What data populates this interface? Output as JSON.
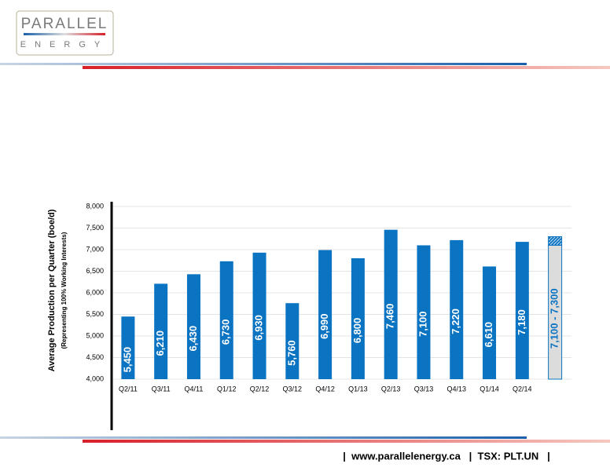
{
  "logo": {
    "name": "PARALLEL",
    "sub": "ENERGY"
  },
  "chart_data": {
    "type": "bar",
    "y_label": "Average Production per Quarter (boe/d)",
    "y_sublabel": "(Representing 100% Working Interests)",
    "categories": [
      "Q2/11",
      "Q3/11",
      "Q4/11",
      "Q1/12",
      "Q2/12",
      "Q3/12",
      "Q4/12",
      "Q1/13",
      "Q2/13",
      "Q3/13",
      "Q4/13",
      "Q1/14",
      "Q2/14"
    ],
    "values": [
      5450,
      6210,
      6430,
      6730,
      6930,
      5760,
      6990,
      6800,
      7460,
      7100,
      7220,
      6610,
      7180
    ],
    "value_labels": [
      "5,450",
      "6,210",
      "6,430",
      "6,730",
      "6,930",
      "5,760",
      "6,990",
      "6,800",
      "7,460",
      "7,100",
      "7,220",
      "6,610",
      "7,180"
    ],
    "color": "#0a73c2",
    "forecast": {
      "low": 7100,
      "high": 7300,
      "label": "7,100 - 7,300",
      "color": "#dcdcdc"
    },
    "ylim": [
      4000,
      8000
    ],
    "yticks": [
      {
        "value": 4000,
        "label": "4,000"
      },
      {
        "value": 4500,
        "label": "4,500"
      },
      {
        "value": 5000,
        "label": "5,000"
      },
      {
        "value": 5500,
        "label": "5,500"
      },
      {
        "value": 6000,
        "label": "6,000"
      },
      {
        "value": 6500,
        "label": "6,500"
      },
      {
        "value": 7000,
        "label": "7,000"
      },
      {
        "value": 7500,
        "label": "7,500"
      },
      {
        "value": 8000,
        "label": "8,000"
      }
    ],
    "grid": true
  },
  "footer": "|  www.parallelenergy.ca   |  TSX: PLT.UN   |"
}
